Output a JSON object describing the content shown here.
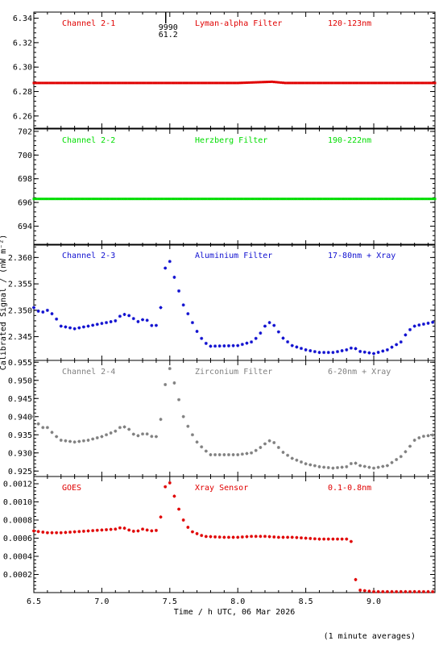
{
  "x_axis": {
    "label": "Time / h UTC, 06 Mar 2026",
    "range": [
      6.5,
      9.45
    ],
    "ticks": [
      "6.5",
      "7.0",
      "7.5",
      "8.0",
      "8.5",
      "9.0"
    ]
  },
  "y_axis_label": "Calibrated Signal / (nW m⁻²)",
  "footnote": "(1 minute averages)",
  "chart_data": [
    {
      "type": "scatter",
      "channel": "Channel 2-1",
      "filter": "Lyman-alpha Filter",
      "band": "120-123nm",
      "color": "#e00000",
      "marker": "dot",
      "ylim": [
        6.25,
        6.345
      ],
      "yticks": [
        "6.26",
        "6.28",
        "6.30",
        "6.32",
        "6.34"
      ],
      "annotation": {
        "x": 7.47,
        "lines": [
          "9990",
          "61.2"
        ]
      },
      "points": [
        [
          6.5,
          6.287
        ],
        [
          7.0,
          6.287
        ],
        [
          7.5,
          6.287
        ],
        [
          8.0,
          6.287
        ],
        [
          8.25,
          6.288
        ],
        [
          8.35,
          6.287
        ],
        [
          9.0,
          6.287
        ],
        [
          9.45,
          6.287
        ]
      ]
    },
    {
      "type": "scatter",
      "channel": "Channel 2-2",
      "filter": "Herzberg Filter",
      "band": "190-222nm",
      "color": "#00dd00",
      "marker": "dot",
      "ylim": [
        692.4,
        702.2
      ],
      "yticks": [
        "694",
        "696",
        "698",
        "700",
        "702"
      ],
      "points": [
        [
          6.5,
          696.3
        ],
        [
          7.0,
          696.3
        ],
        [
          7.5,
          696.3
        ],
        [
          8.0,
          696.3
        ],
        [
          8.5,
          696.3
        ],
        [
          9.0,
          696.3
        ],
        [
          9.45,
          696.3
        ]
      ]
    },
    {
      "type": "scatter",
      "channel": "Channel 2-3",
      "filter": "Aluminium Filter",
      "band": "17-80nm + Xray",
      "color": "#1010d0",
      "marker": "star",
      "ylim": [
        2.3405,
        2.3625
      ],
      "yticks": [
        "2.345",
        "2.350",
        "2.355",
        "2.360"
      ],
      "points": [
        [
          6.5,
          2.3505
        ],
        [
          6.55,
          2.3495
        ],
        [
          6.6,
          2.35
        ],
        [
          6.65,
          2.349
        ],
        [
          6.7,
          2.347
        ],
        [
          6.8,
          2.3465
        ],
        [
          6.9,
          2.347
        ],
        [
          7.0,
          2.3475
        ],
        [
          7.1,
          2.348
        ],
        [
          7.15,
          2.3493
        ],
        [
          7.2,
          2.349
        ],
        [
          7.27,
          2.3478
        ],
        [
          7.32,
          2.3485
        ],
        [
          7.37,
          2.347
        ],
        [
          7.42,
          2.3472
        ],
        [
          7.43,
          2.35
        ],
        [
          7.45,
          2.353
        ],
        [
          7.47,
          2.359
        ],
        [
          7.49,
          2.3605
        ],
        [
          7.51,
          2.358
        ],
        [
          7.55,
          2.355
        ],
        [
          7.6,
          2.351
        ],
        [
          7.65,
          2.3485
        ],
        [
          7.7,
          2.346
        ],
        [
          7.75,
          2.344
        ],
        [
          7.8,
          2.3432
        ],
        [
          8.0,
          2.3433
        ],
        [
          8.1,
          2.344
        ],
        [
          8.15,
          2.345
        ],
        [
          8.2,
          2.347
        ],
        [
          8.24,
          2.3478
        ],
        [
          8.28,
          2.3468
        ],
        [
          8.32,
          2.345
        ],
        [
          8.4,
          2.3433
        ],
        [
          8.5,
          2.3425
        ],
        [
          8.6,
          2.342
        ],
        [
          8.7,
          2.342
        ],
        [
          8.8,
          2.3425
        ],
        [
          8.85,
          2.343
        ],
        [
          8.9,
          2.3422
        ],
        [
          9.0,
          2.3418
        ],
        [
          9.1,
          2.3425
        ],
        [
          9.2,
          2.344
        ],
        [
          9.25,
          2.346
        ],
        [
          9.3,
          2.347
        ],
        [
          9.35,
          2.3473
        ],
        [
          9.45,
          2.3478
        ]
      ]
    },
    {
      "type": "scatter",
      "channel": "Channel 2-4",
      "filter": "Zirconium Filter",
      "band": "6-20nm + Xray",
      "color": "#808080",
      "marker": "star",
      "ylim": [
        0.9235,
        0.9555
      ],
      "yticks": [
        "0.925",
        "0.930",
        "0.935",
        "0.940",
        "0.945",
        "0.950",
        "0.955"
      ],
      "points": [
        [
          6.5,
          0.94
        ],
        [
          6.55,
          0.937
        ],
        [
          6.6,
          0.937
        ],
        [
          6.65,
          0.935
        ],
        [
          6.7,
          0.9335
        ],
        [
          6.8,
          0.933
        ],
        [
          6.9,
          0.9335
        ],
        [
          7.0,
          0.9345
        ],
        [
          7.1,
          0.936
        ],
        [
          7.15,
          0.9375
        ],
        [
          7.2,
          0.9365
        ],
        [
          7.25,
          0.9345
        ],
        [
          7.32,
          0.9355
        ],
        [
          7.37,
          0.9345
        ],
        [
          7.42,
          0.9345
        ],
        [
          7.43,
          0.9385
        ],
        [
          7.45,
          0.943
        ],
        [
          7.47,
          0.95
        ],
        [
          7.49,
          0.954
        ],
        [
          7.51,
          0.9525
        ],
        [
          7.55,
          0.947
        ],
        [
          7.6,
          0.94
        ],
        [
          7.65,
          0.936
        ],
        [
          7.7,
          0.933
        ],
        [
          7.75,
          0.931
        ],
        [
          7.8,
          0.9295
        ],
        [
          8.0,
          0.9295
        ],
        [
          8.1,
          0.93
        ],
        [
          8.15,
          0.931
        ],
        [
          8.2,
          0.9325
        ],
        [
          8.24,
          0.9335
        ],
        [
          8.28,
          0.9325
        ],
        [
          8.32,
          0.9305
        ],
        [
          8.4,
          0.9285
        ],
        [
          8.5,
          0.927
        ],
        [
          8.6,
          0.9262
        ],
        [
          8.7,
          0.9258
        ],
        [
          8.8,
          0.9262
        ],
        [
          8.85,
          0.9275
        ],
        [
          8.9,
          0.9265
        ],
        [
          9.0,
          0.9258
        ],
        [
          9.1,
          0.9265
        ],
        [
          9.2,
          0.929
        ],
        [
          9.25,
          0.931
        ],
        [
          9.3,
          0.9335
        ],
        [
          9.35,
          0.9345
        ],
        [
          9.45,
          0.935
        ]
      ]
    },
    {
      "type": "scatter",
      "channel": "GOES",
      "filter": "Xray Sensor",
      "band": "0.1-0.8nm",
      "color": "#e00000",
      "marker": "star",
      "ylim": [
        0.0,
        0.00128
      ],
      "yticks": [
        "0.0002",
        "0.0004",
        "0.0006",
        "0.0008",
        "0.0010",
        "0.0012"
      ],
      "points": [
        [
          6.5,
          0.00068
        ],
        [
          6.6,
          0.00066
        ],
        [
          6.7,
          0.00066
        ],
        [
          6.8,
          0.00067
        ],
        [
          6.9,
          0.00068
        ],
        [
          7.0,
          0.00069
        ],
        [
          7.1,
          0.0007
        ],
        [
          7.15,
          0.00072
        ],
        [
          7.2,
          0.00069
        ],
        [
          7.25,
          0.00067
        ],
        [
          7.3,
          0.0007
        ],
        [
          7.37,
          0.00068
        ],
        [
          7.42,
          0.00069
        ],
        [
          7.43,
          0.0008
        ],
        [
          7.45,
          0.001
        ],
        [
          7.47,
          0.0012
        ],
        [
          7.49,
          0.00124
        ],
        [
          7.51,
          0.00118
        ],
        [
          7.55,
          0.00098
        ],
        [
          7.6,
          0.0008
        ],
        [
          7.65,
          0.00068
        ],
        [
          7.75,
          0.00062
        ],
        [
          7.9,
          0.00061
        ],
        [
          8.0,
          0.00061
        ],
        [
          8.1,
          0.00062
        ],
        [
          8.2,
          0.00062
        ],
        [
          8.3,
          0.00061
        ],
        [
          8.4,
          0.00061
        ],
        [
          8.6,
          0.00059
        ],
        [
          8.8,
          0.00059
        ],
        [
          8.83,
          0.00062
        ],
        [
          8.84,
          0.00045
        ],
        [
          8.86,
          0.0002
        ],
        [
          8.88,
          3e-05
        ],
        [
          9.0,
          1e-05
        ],
        [
          9.45,
          1e-05
        ]
      ]
    }
  ]
}
